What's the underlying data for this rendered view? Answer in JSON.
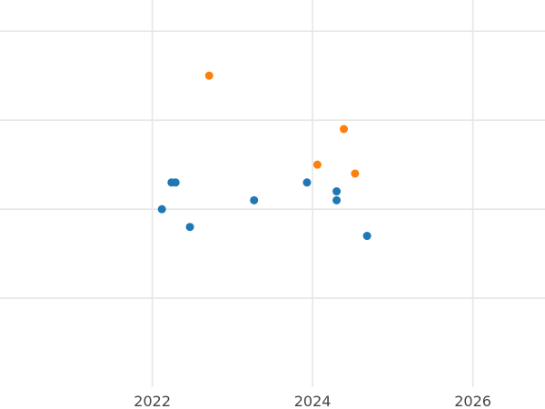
{
  "chart_data": {
    "type": "scatter",
    "title": "",
    "xlabel": "",
    "ylabel": "",
    "xlim": [
      2020.1,
      2026.9
    ],
    "ylim": [
      0,
      4.35
    ],
    "x_ticks": [
      2022,
      2024,
      2026
    ],
    "x_tick_labels": [
      "2022",
      "2024",
      "2026"
    ],
    "y_gridlines": [
      1,
      2,
      3,
      4
    ],
    "grid": true,
    "legend": "none",
    "series": [
      {
        "color": "#1f77b4",
        "points": [
          {
            "x": 2022.12,
            "y": 2.0
          },
          {
            "x": 2022.24,
            "y": 2.3
          },
          {
            "x": 2022.29,
            "y": 2.3
          },
          {
            "x": 2022.47,
            "y": 1.8
          },
          {
            "x": 2023.27,
            "y": 2.1
          },
          {
            "x": 2023.93,
            "y": 2.3
          },
          {
            "x": 2024.3,
            "y": 2.2
          },
          {
            "x": 2024.3,
            "y": 2.1
          },
          {
            "x": 2024.68,
            "y": 1.7
          }
        ]
      },
      {
        "color": "#ff7f0e",
        "points": [
          {
            "x": 2022.71,
            "y": 3.5
          },
          {
            "x": 2024.06,
            "y": 2.5
          },
          {
            "x": 2024.39,
            "y": 2.9
          },
          {
            "x": 2024.53,
            "y": 2.4
          }
        ]
      }
    ]
  }
}
